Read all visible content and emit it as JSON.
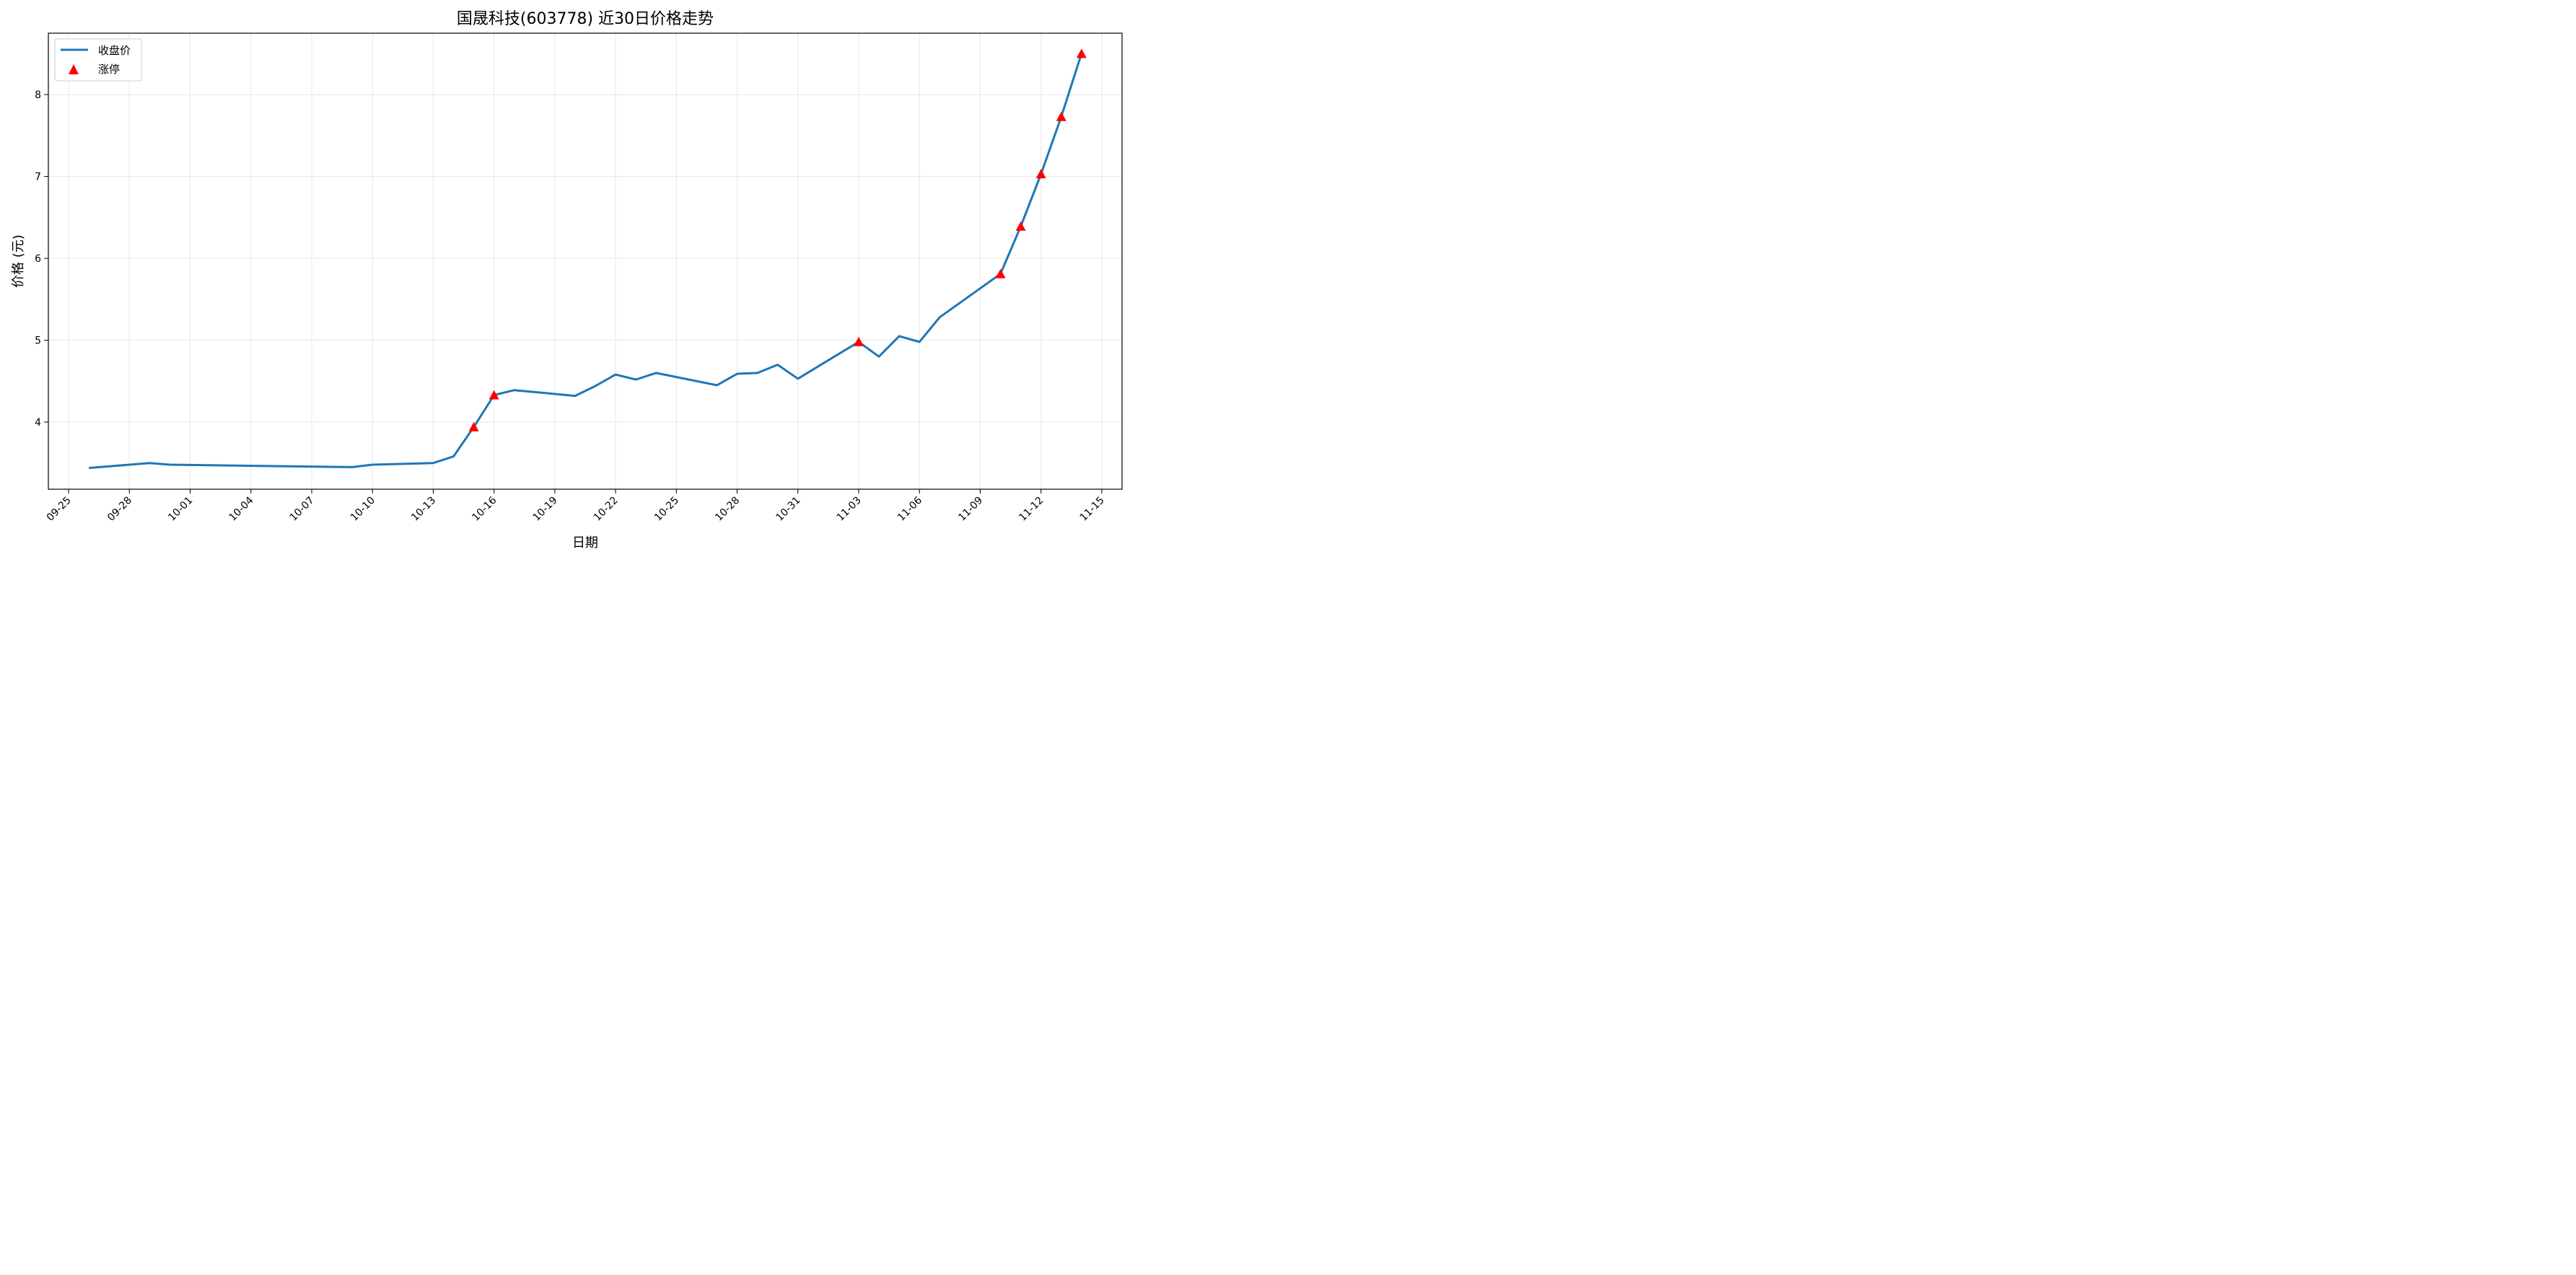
{
  "chart_data": {
    "type": "line",
    "title": "国晟科技(603778) 近30日价格走势",
    "xlabel": "日期",
    "ylabel": "价格 (元)",
    "x_ticks": [
      "09-25",
      "09-28",
      "10-01",
      "10-04",
      "10-07",
      "10-10",
      "10-13",
      "10-16",
      "10-19",
      "10-22",
      "10-25",
      "10-28",
      "10-31",
      "11-03",
      "11-06",
      "11-09",
      "11-12",
      "11-15"
    ],
    "y_ticks": [
      "4",
      "5",
      "6",
      "7",
      "8"
    ],
    "xlim": [
      "09-24",
      "11-16"
    ],
    "ylim": [
      3.18,
      8.75
    ],
    "grid": true,
    "legend_position": "top-left",
    "colors": {
      "line": "#1f77b4",
      "marker": "#ff0000"
    },
    "series": [
      {
        "name": "收盘价",
        "x": [
          "09-26",
          "09-29",
          "09-30",
          "10-09",
          "10-10",
          "10-13",
          "10-14",
          "10-15",
          "10-16",
          "10-17",
          "10-20",
          "10-21",
          "10-22",
          "10-23",
          "10-24",
          "10-27",
          "10-28",
          "10-29",
          "10-30",
          "10-31",
          "11-03",
          "11-04",
          "11-05",
          "11-06",
          "11-07",
          "11-10",
          "11-11",
          "11-12",
          "11-13",
          "11-14"
        ],
        "y": [
          3.44,
          3.5,
          3.48,
          3.45,
          3.48,
          3.5,
          3.58,
          3.94,
          4.33,
          4.39,
          4.32,
          4.44,
          4.58,
          4.52,
          4.6,
          4.45,
          4.59,
          4.6,
          4.7,
          4.53,
          4.98,
          4.8,
          5.05,
          4.98,
          5.28,
          5.81,
          6.39,
          7.03,
          7.73,
          8.5
        ]
      }
    ],
    "limit_up": {
      "name": "涨停",
      "x": [
        "10-15",
        "10-16",
        "11-03",
        "11-10",
        "11-11",
        "11-12",
        "11-13",
        "11-14"
      ],
      "y": [
        3.94,
        4.33,
        4.98,
        5.81,
        6.39,
        7.03,
        7.73,
        8.5
      ]
    }
  }
}
